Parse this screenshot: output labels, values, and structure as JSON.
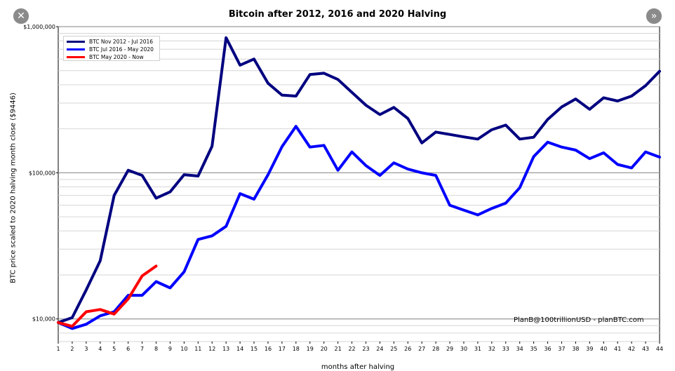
{
  "nav": {
    "close_glyph": "✕",
    "next_glyph": "»",
    "close_icon": "close-icon",
    "next_icon": "chevron-double-right-icon"
  },
  "credit": "PlanB@100trillionUSD  -  planBTC.com",
  "chart_data": {
    "type": "line",
    "title": "Bitcoin after 2012, 2016 and 2020 Halving",
    "ylabel": "BTC price scaled to 2020 halving month close ($9446)",
    "xlabel": "months after halving",
    "yscale": "log",
    "ylim": [
      7000,
      1000000
    ],
    "xlim": [
      1,
      44
    ],
    "y_ticks": [
      {
        "value": 10000,
        "label": "$10,000"
      },
      {
        "value": 100000,
        "label": "$100,000"
      },
      {
        "value": 1000000,
        "label": "$1,000,000"
      }
    ],
    "x_ticks": [
      "1",
      "2",
      "3",
      "4",
      "5",
      "6",
      "7",
      "8",
      "9",
      "10",
      "11",
      "12",
      "13",
      "14",
      "15",
      "16",
      "17",
      "18",
      "19",
      "20",
      "21",
      "22",
      "23",
      "24",
      "25",
      "26",
      "27",
      "28",
      "29",
      "30",
      "31",
      "32",
      "33",
      "34",
      "35",
      "36",
      "37",
      "38",
      "39",
      "40",
      "41",
      "42",
      "43",
      "44"
    ],
    "grid": true,
    "legend_position": "top-left",
    "series": [
      {
        "name": "BTC Nov 2012 - Jul 2016",
        "color": "#000080",
        "x": [
          1,
          2,
          3,
          4,
          5,
          6,
          7,
          8,
          9,
          10,
          11,
          12,
          13,
          14,
          15,
          16,
          17,
          18,
          19,
          20,
          21,
          22,
          23,
          24,
          25,
          26,
          27,
          28,
          29,
          30,
          31,
          32,
          33,
          34,
          35,
          36,
          37,
          38,
          39,
          40,
          41,
          42,
          43,
          44
        ],
        "values": [
          9446,
          10200,
          15800,
          25000,
          70000,
          104000,
          96000,
          67000,
          74000,
          97000,
          95000,
          152000,
          840000,
          545000,
          600000,
          410000,
          340000,
          335000,
          470000,
          480000,
          435000,
          355000,
          290000,
          250000,
          280000,
          235000,
          160000,
          190000,
          183000,
          176000,
          170000,
          197000,
          212000,
          170000,
          175000,
          232000,
          282000,
          320000,
          272000,
          326000,
          310000,
          335000,
          395000,
          495000
        ]
      },
      {
        "name": "BTC Jul 2016 - May 2020",
        "color": "#0000ff",
        "x": [
          1,
          2,
          3,
          4,
          5,
          6,
          7,
          8,
          9,
          10,
          11,
          12,
          13,
          14,
          15,
          16,
          17,
          18,
          19,
          20,
          21,
          22,
          23,
          24,
          25,
          26,
          27,
          28,
          29,
          30,
          31,
          32,
          33,
          34,
          35,
          36,
          37,
          38,
          39,
          40,
          41,
          42,
          43,
          44
        ],
        "values": [
          9446,
          8600,
          9200,
          10500,
          11200,
          14500,
          14500,
          18000,
          16300,
          21000,
          35000,
          37000,
          43000,
          72000,
          66000,
          97000,
          151000,
          208000,
          150000,
          154000,
          104000,
          139000,
          112000,
          96000,
          117000,
          106000,
          100000,
          96000,
          60000,
          55500,
          51500,
          57000,
          62000,
          79000,
          129000,
          162000,
          150000,
          143000,
          125000,
          137000,
          114000,
          108000,
          139000,
          128000
        ]
      },
      {
        "name": "BTC May 2020 - Now",
        "color": "#ff0000",
        "x": [
          1,
          2,
          3,
          4,
          5,
          6,
          7,
          8
        ],
        "values": [
          9446,
          8900,
          11200,
          11600,
          10800,
          13700,
          19700,
          23000
        ]
      }
    ]
  }
}
